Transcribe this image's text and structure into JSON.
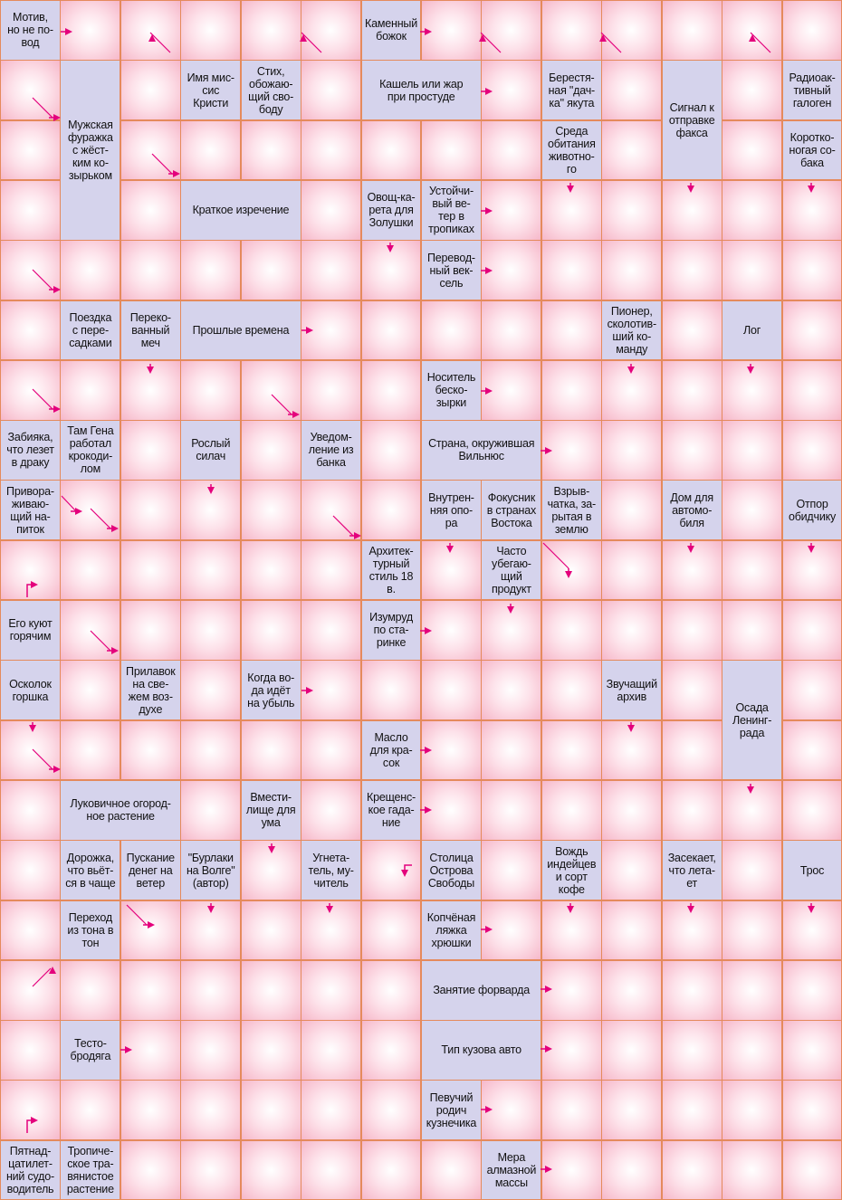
{
  "colors": {
    "arrow": "#e4007c",
    "clue_bg": "#d5d3ec",
    "grid_line": "#e58a5c"
  },
  "grid": {
    "cols": 14,
    "rows": 20
  },
  "clues": [
    {
      "r": 0,
      "c": 0,
      "text": "Мотив,\nно не по-\nвод"
    },
    {
      "r": 0,
      "c": 6,
      "text": "Каменный\nбожок"
    },
    {
      "r": 1,
      "c": 3,
      "text": "Имя мис-\nсис\nКристи"
    },
    {
      "r": 1,
      "c": 4,
      "text": "Стих,\nобожаю-\nщий сво-\nбоду"
    },
    {
      "r": 1,
      "c": 6,
      "cs": 2,
      "text": "Кашель или жар\nпри простуде"
    },
    {
      "r": 1,
      "c": 9,
      "text": "Берестя-\nная \"дач-\nка\" якута"
    },
    {
      "r": 1,
      "c": 11,
      "rs": 2,
      "text": "Сигнал к\nотправке\nфакса"
    },
    {
      "r": 1,
      "c": 13,
      "text": "Радиоак-\nтивный\nгалоген"
    },
    {
      "r": 1,
      "c": 1,
      "rs": 3,
      "text": "Мужская\nфуражка\nс жёст-\nким ко-\nзырьком"
    },
    {
      "r": 2,
      "c": 9,
      "text": "Среда\nобитания\nживотно-\nго"
    },
    {
      "r": 2,
      "c": 13,
      "text": "Коротко-\nногая со-\nбака"
    },
    {
      "r": 3,
      "c": 3,
      "cs": 2,
      "text": "Краткое изречение"
    },
    {
      "r": 3,
      "c": 6,
      "text": "Овощ-ка-\nрета для\nЗолушки"
    },
    {
      "r": 3,
      "c": 7,
      "text": "Устойчи-\nвый ве-\nтер в\nтропиках"
    },
    {
      "r": 4,
      "c": 7,
      "text": "Перевод-\nный век-\nсель"
    },
    {
      "r": 5,
      "c": 1,
      "text": "Поездка\nс пере-\nсадками"
    },
    {
      "r": 5,
      "c": 2,
      "text": "Переко-\nванный\nмеч"
    },
    {
      "r": 5,
      "c": 3,
      "cs": 2,
      "text": "Прошлые времена"
    },
    {
      "r": 5,
      "c": 10,
      "text": "Пионер,\nсколотив-\nший ко-\nманду"
    },
    {
      "r": 5,
      "c": 12,
      "text": "Лог"
    },
    {
      "r": 6,
      "c": 7,
      "text": "Носитель\nбеско-\nзырки"
    },
    {
      "r": 7,
      "c": 0,
      "text": "Забияка,\nчто лезет\nв драку"
    },
    {
      "r": 7,
      "c": 1,
      "text": "Там Гена\nработал\nкрокоди-\nлом"
    },
    {
      "r": 7,
      "c": 3,
      "text": "Рослый\nсилач"
    },
    {
      "r": 7,
      "c": 5,
      "text": "Уведом-\nление из\nбанка"
    },
    {
      "r": 7,
      "c": 7,
      "cs": 2,
      "text": "Страна, окружившая\nВильнюс"
    },
    {
      "r": 8,
      "c": 0,
      "text": "Привора-\nживаю-\nщий на-\nпиток"
    },
    {
      "r": 8,
      "c": 7,
      "text": "Внутрен-\nняя опо-\nра"
    },
    {
      "r": 8,
      "c": 8,
      "text": "Фокусник\nв странах\nВостока"
    },
    {
      "r": 8,
      "c": 9,
      "text": "Взрыв-\nчатка, за-\nрытая в\nземлю"
    },
    {
      "r": 8,
      "c": 11,
      "text": "Дом для\nавтомо-\nбиля"
    },
    {
      "r": 8,
      "c": 13,
      "text": "Отпор\nобидчику"
    },
    {
      "r": 9,
      "c": 6,
      "text": "Архитек-\nтурный\nстиль 18\nв."
    },
    {
      "r": 9,
      "c": 8,
      "text": "Часто\nубегаю-\nщий\nпродукт"
    },
    {
      "r": 10,
      "c": 0,
      "text": "Его куют\nгорячим"
    },
    {
      "r": 10,
      "c": 6,
      "text": "Изумруд\nпо ста-\nринке"
    },
    {
      "r": 11,
      "c": 0,
      "text": "Осколок\nгоршка"
    },
    {
      "r": 11,
      "c": 2,
      "text": "Прилавок\nна све-\nжем воз-\nдухе"
    },
    {
      "r": 11,
      "c": 4,
      "text": "Когда во-\nда идёт\nна убыль"
    },
    {
      "r": 11,
      "c": 10,
      "text": "Звучащий\nархив"
    },
    {
      "r": 11,
      "c": 12,
      "rs": 2,
      "text": "Осада\nЛенинг-\nрада"
    },
    {
      "r": 12,
      "c": 6,
      "text": "Масло\nдля кра-\nсок"
    },
    {
      "r": 13,
      "c": 1,
      "cs": 2,
      "text": "Луковичное огород-\nное растение"
    },
    {
      "r": 13,
      "c": 4,
      "text": "Вмести-\nлище для\nума"
    },
    {
      "r": 13,
      "c": 6,
      "text": "Крещенс-\nкое гада-\nние"
    },
    {
      "r": 14,
      "c": 1,
      "text": "Дорожка,\nчто вьёт-\nся в чаще"
    },
    {
      "r": 14,
      "c": 2,
      "text": "Пускание\nденег на\nветер"
    },
    {
      "r": 14,
      "c": 3,
      "text": "\"Бурлаки\nна Волге\"\n(автор)"
    },
    {
      "r": 14,
      "c": 5,
      "text": "Угнета-\nтель, му-\nчитель"
    },
    {
      "r": 14,
      "c": 7,
      "text": "Столица\nОстрова\nСвободы"
    },
    {
      "r": 14,
      "c": 9,
      "text": "Вождь\nиндейцев\nи сорт\nкофе"
    },
    {
      "r": 14,
      "c": 11,
      "text": "Засекает,\nчто лета-\nет"
    },
    {
      "r": 14,
      "c": 13,
      "text": "Трос"
    },
    {
      "r": 15,
      "c": 1,
      "text": "Переход\nиз тона в\nтон"
    },
    {
      "r": 15,
      "c": 7,
      "text": "Копчёная\nляжка\nхрюшки"
    },
    {
      "r": 16,
      "c": 7,
      "cs": 2,
      "text": "Занятие форварда"
    },
    {
      "r": 17,
      "c": 1,
      "text": "Тесто-\nбродяга"
    },
    {
      "r": 17,
      "c": 7,
      "cs": 2,
      "text": "Тип кузова авто"
    },
    {
      "r": 18,
      "c": 7,
      "text": "Певучий\nродич\nкузнечика"
    },
    {
      "r": 19,
      "c": 0,
      "text": "Пятнад-\nцатилет-\nний судо-\nводитель"
    },
    {
      "r": 19,
      "c": 1,
      "text": "Тропиче-\nское тра-\nвянистое\nрастение"
    },
    {
      "r": 19,
      "c": 8,
      "text": "Мера\nалмазной\nмассы"
    }
  ]
}
